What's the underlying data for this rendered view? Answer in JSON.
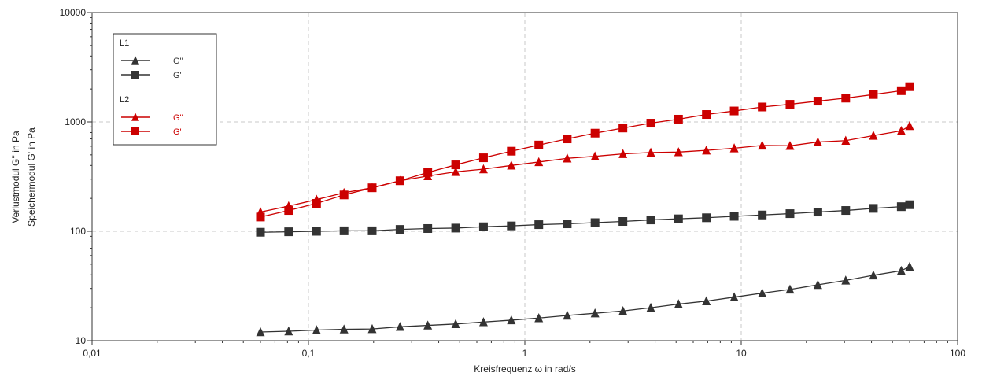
{
  "chart_data": {
    "type": "line",
    "xscale": "log",
    "yscale": "log",
    "xlim": [
      0.01,
      100
    ],
    "ylim": [
      10,
      10000
    ],
    "xlabel": "Kreisfrequenz ω  in rad/s",
    "ylabel_top": "Verlustmodul G'' in Pa",
    "ylabel_bottom": "Speichermodul G' in Pa",
    "x_tick_labels": [
      "0,01",
      "0,1",
      "1",
      "10",
      "100"
    ],
    "y_tick_labels": [
      "10",
      "100",
      "1000",
      "10000"
    ],
    "grid": true,
    "legend_position": "top-left",
    "x": [
      0.06,
      0.081,
      0.109,
      0.146,
      0.197,
      0.265,
      0.356,
      0.479,
      0.644,
      0.866,
      1.16,
      1.57,
      2.11,
      2.84,
      3.82,
      5.13,
      6.9,
      9.28,
      12.5,
      16.8,
      22.6,
      30.4,
      40.8,
      54.9,
      60
    ],
    "series": [
      {
        "name": "G''",
        "group": "L1",
        "marker": "triangle",
        "color": "#333333",
        "values": [
          12,
          12.2,
          12.5,
          12.7,
          12.8,
          13.4,
          13.8,
          14.2,
          14.8,
          15.4,
          16.1,
          17,
          17.8,
          18.7,
          20,
          21.6,
          23,
          25,
          27.2,
          29.4,
          32.4,
          35.6,
          39.6,
          43.6,
          47.5
        ]
      },
      {
        "name": "G'",
        "group": "L1",
        "marker": "square",
        "color": "#333333",
        "values": [
          98,
          99,
          100,
          101,
          101,
          104,
          106,
          107,
          110,
          112,
          115,
          117,
          120,
          123,
          127,
          130,
          133,
          137,
          141,
          145,
          150,
          155,
          162,
          168,
          175
        ]
      },
      {
        "name": "G''",
        "group": "L2",
        "marker": "triangle",
        "color": "#cc0000",
        "values": [
          150,
          170,
          195,
          225,
          250,
          290,
          320,
          350,
          370,
          400,
          430,
          465,
          485,
          510,
          525,
          530,
          550,
          575,
          610,
          605,
          655,
          675,
          750,
          830,
          920
        ]
      },
      {
        "name": "G'",
        "group": "L2",
        "marker": "square",
        "color": "#cc0000",
        "values": [
          135,
          155,
          180,
          215,
          250,
          290,
          345,
          405,
          470,
          540,
          615,
          700,
          790,
          880,
          975,
          1060,
          1170,
          1260,
          1370,
          1450,
          1550,
          1650,
          1780,
          1930,
          2100
        ]
      }
    ]
  },
  "legend": {
    "groups": [
      {
        "title": "L1",
        "color": "#333333",
        "items": [
          {
            "label": "G''",
            "marker": "triangle"
          },
          {
            "label": "G'",
            "marker": "square"
          }
        ]
      },
      {
        "title": "L2",
        "color": "#cc0000",
        "items": [
          {
            "label": "G''",
            "marker": "triangle"
          },
          {
            "label": "G'",
            "marker": "square"
          }
        ]
      }
    ]
  }
}
